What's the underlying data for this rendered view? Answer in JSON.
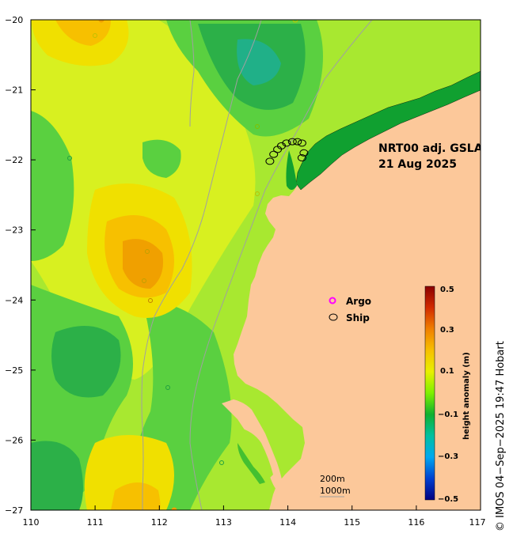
{
  "title": {
    "line1": "NRT00 adj. GSLA",
    "line2": "21 Aug 2025"
  },
  "legend": {
    "argo_label": "Argo",
    "ship_label": "Ship",
    "argo_color": "#ff00ff",
    "ship_color": "#000000"
  },
  "colorbar": {
    "title": "height anomaly (m)",
    "ticks": [
      "0.5",
      "0.3",
      "0.1",
      "−0.1",
      "−0.3",
      "−0.5"
    ]
  },
  "scale": {
    "contour1": "200m",
    "contour2": "1000m"
  },
  "copyright": "© IMOS 04−Sep−2025 19:47 Hobart",
  "axes": {
    "x_ticks": [
      "110",
      "111",
      "112",
      "113",
      "114",
      "115",
      "116",
      "117"
    ],
    "y_ticks": [
      "−20",
      "−21",
      "−22",
      "−23",
      "−24",
      "−25",
      "−26",
      "−27"
    ]
  },
  "chart_data": {
    "type": "heatmap",
    "title": "NRT00 adj. GSLA",
    "subtitle": "21 Aug 2025",
    "xlabel": "",
    "ylabel": "",
    "xlim": [
      110,
      117
    ],
    "ylim": [
      -27,
      -20
    ],
    "colorbar_range": [
      -0.5,
      0.5
    ],
    "colorbar_label": "height anomaly (m)",
    "land_color": "#fcc89a",
    "anomaly_features": [
      {
        "lon": 111.9,
        "lat": -23.5,
        "anomaly": 0.2
      },
      {
        "lon": 113.5,
        "lat": -20.6,
        "anomaly": -0.15
      },
      {
        "lon": 110.85,
        "lat": -20.2,
        "anomaly": 0.15
      },
      {
        "lon": 110.8,
        "lat": -24.9,
        "anomaly": -0.12
      },
      {
        "lon": 112.15,
        "lat": -26.9,
        "anomaly": 0.1
      },
      {
        "lon": 110.6,
        "lat": -26.6,
        "anomaly": -0.1
      },
      {
        "lon": 112.0,
        "lat": -21.95,
        "anomaly": -0.05
      }
    ],
    "ship_track": [
      [
        113.72,
        -22.02
      ],
      [
        113.78,
        -21.92
      ],
      [
        113.84,
        -21.85
      ],
      [
        113.9,
        -21.8
      ],
      [
        113.98,
        -21.76
      ],
      [
        114.07,
        -21.74
      ],
      [
        114.15,
        -21.74
      ],
      [
        114.22,
        -21.76
      ],
      [
        114.25,
        -21.9
      ],
      [
        114.22,
        -21.97
      ]
    ]
  }
}
